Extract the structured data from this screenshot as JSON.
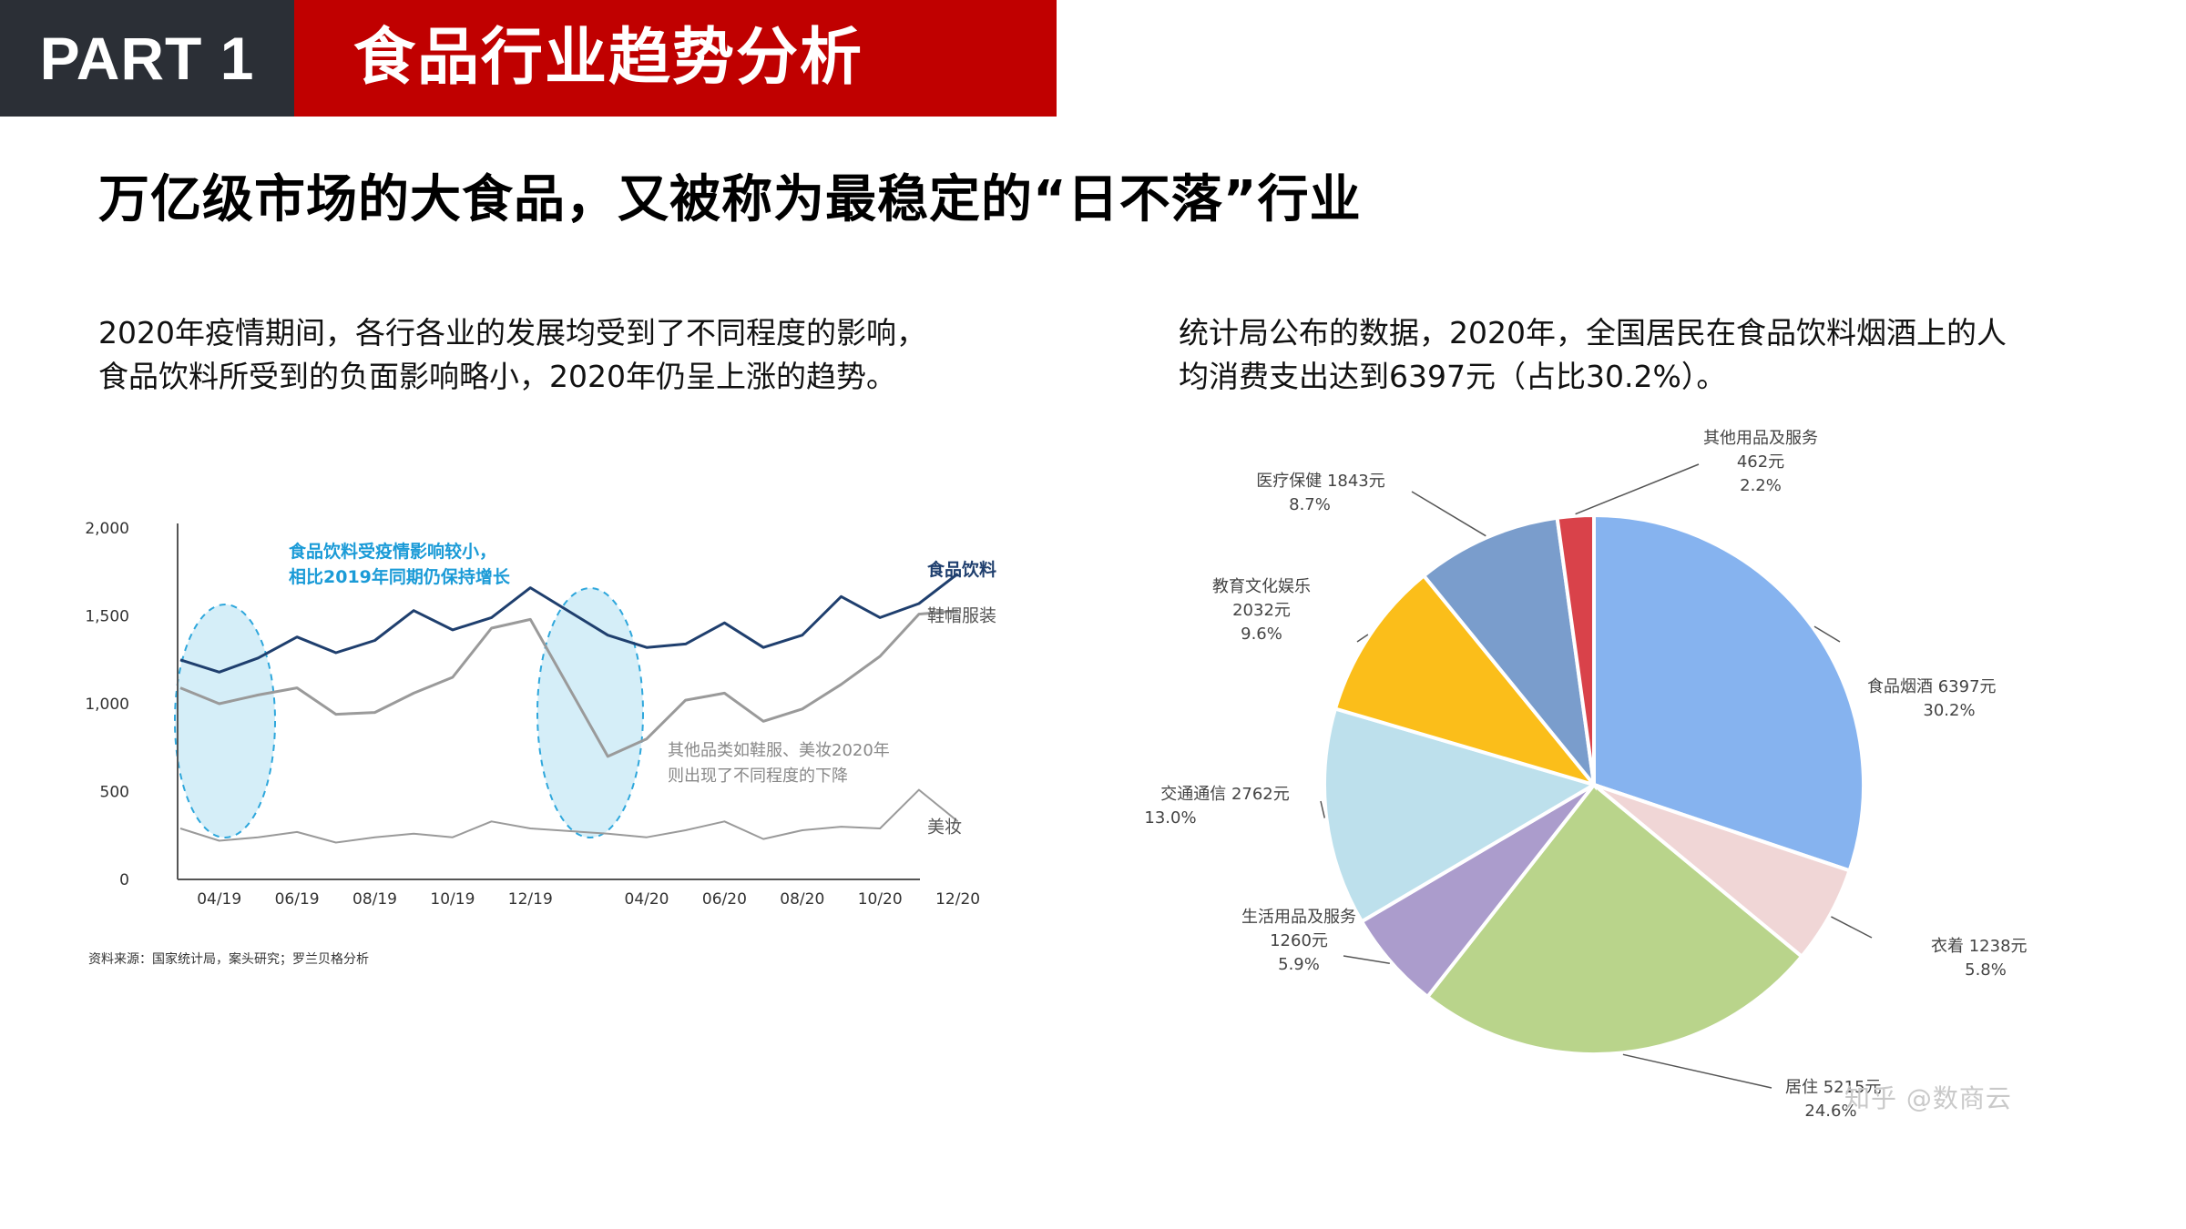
{
  "header": {
    "part_label": "PART 1",
    "section_title": "食品行业趋势分析"
  },
  "subtitle": "万亿级市场的大食品，又被称为最稳定的“日不落”行业",
  "left_text": {
    "line1": "2020年疫情期间，各行各业的发展均受到了不同程度的影响，",
    "line2": "食品饮料所受到的负面影响略小，2020年仍呈上涨的趋势。"
  },
  "right_text": {
    "line1": "统计局公布的数据，2020年，全国居民在食品饮料烟酒上的人",
    "line2": "均消费支出达到6397元（占比30.2%）。"
  },
  "source_note": "资料来源：国家统计局，案头研究；罗兰贝格分析",
  "watermark": "知乎 @数商云",
  "chart_data": [
    {
      "type": "line",
      "title": "",
      "xlabel": "",
      "ylabel": "",
      "ylim": [
        0,
        2000
      ],
      "yticks": [
        "2,000",
        "1,500",
        "1,000",
        "500",
        "0"
      ],
      "x_tick_labels": [
        "04/19",
        "06/19",
        "08/19",
        "10/19",
        "12/19",
        "04/20",
        "06/20",
        "08/20",
        "10/20",
        "12/20"
      ],
      "x": [
        "03/19",
        "04/19",
        "05/19",
        "06/19",
        "07/19",
        "08/19",
        "09/19",
        "10/19",
        "11/19",
        "12/19",
        "03/20",
        "04/20",
        "05/20",
        "06/20",
        "07/20",
        "08/20",
        "09/20",
        "10/20",
        "11/20",
        "12/20"
      ],
      "series": [
        {
          "name": "食品饮料",
          "color": "#1f3f6e",
          "width": 3,
          "values": [
            1250,
            1180,
            1260,
            1380,
            1290,
            1360,
            1530,
            1420,
            1490,
            1660,
            1390,
            1320,
            1340,
            1460,
            1320,
            1390,
            1610,
            1490,
            1570,
            1740
          ]
        },
        {
          "name": "鞋帽服装",
          "color": "#9a9a9a",
          "width": 3,
          "values": [
            1090,
            1000,
            1050,
            1090,
            940,
            950,
            1060,
            1150,
            1430,
            1480,
            700,
            800,
            1020,
            1060,
            900,
            970,
            1110,
            1270,
            1510,
            1530
          ]
        },
        {
          "name": "美妆",
          "color": "#9a9a9a",
          "width": 2,
          "values": [
            290,
            220,
            240,
            270,
            210,
            240,
            260,
            240,
            330,
            290,
            260,
            240,
            280,
            330,
            230,
            280,
            300,
            290,
            510,
            330
          ]
        }
      ],
      "annotations": [
        {
          "text": "食品饮料受疫情影响较小，相比2019年同期仍保持增长",
          "line1": "食品饮料受疫情影响较小，",
          "line2": "相比2019年同期仍保持增长",
          "color": "#1b9bd7"
        },
        {
          "text": "其他品类如鞋服、美妆2020年则出现了不同程度的下降",
          "line1": "其他品类如鞋服、美妆2020年",
          "line2": "则出现了不同程度的下降",
          "color": "#888888"
        }
      ],
      "highlight_ellipse_color": "#d5eef8",
      "highlight_ellipse_stroke": "#2ea7dc"
    },
    {
      "type": "pie",
      "title": "",
      "slices": [
        {
          "name": "食品烟酒",
          "value": 6397,
          "amount_text": "6397元",
          "percent_text": "30.2%",
          "percent": 30.2,
          "color": "#86b3ef"
        },
        {
          "name": "衣着",
          "value": 1238,
          "amount_text": "1238元",
          "percent_text": "5.8%",
          "percent": 5.8,
          "color": "#f0d6d6"
        },
        {
          "name": "居住",
          "value": 5215,
          "amount_text": "5215元",
          "percent_text": "24.6%",
          "percent": 24.6,
          "color": "#b9d48b"
        },
        {
          "name": "生活用品及服务",
          "value": 1260,
          "amount_text": "1260元",
          "percent_text": "5.9%",
          "percent": 5.9,
          "color": "#ab9ccc"
        },
        {
          "name": "交通通信",
          "value": 2762,
          "amount_text": "2762元",
          "percent_text": "13.0%",
          "percent": 13.0,
          "color": "#bde0ec"
        },
        {
          "name": "教育文化娱乐",
          "value": 2032,
          "amount_text": "2032元",
          "percent_text": "9.6%",
          "percent": 9.6,
          "color": "#fbbe1a"
        },
        {
          "name": "医疗保健",
          "value": 1843,
          "amount_text": "1843元",
          "percent_text": "8.7%",
          "percent": 8.7,
          "color": "#7a9dcc"
        },
        {
          "name": "其他用品及服务",
          "value": 462,
          "amount_text": "462元",
          "percent_text": "2.2%",
          "percent": 2.2,
          "color": "#d9424a"
        }
      ]
    }
  ]
}
